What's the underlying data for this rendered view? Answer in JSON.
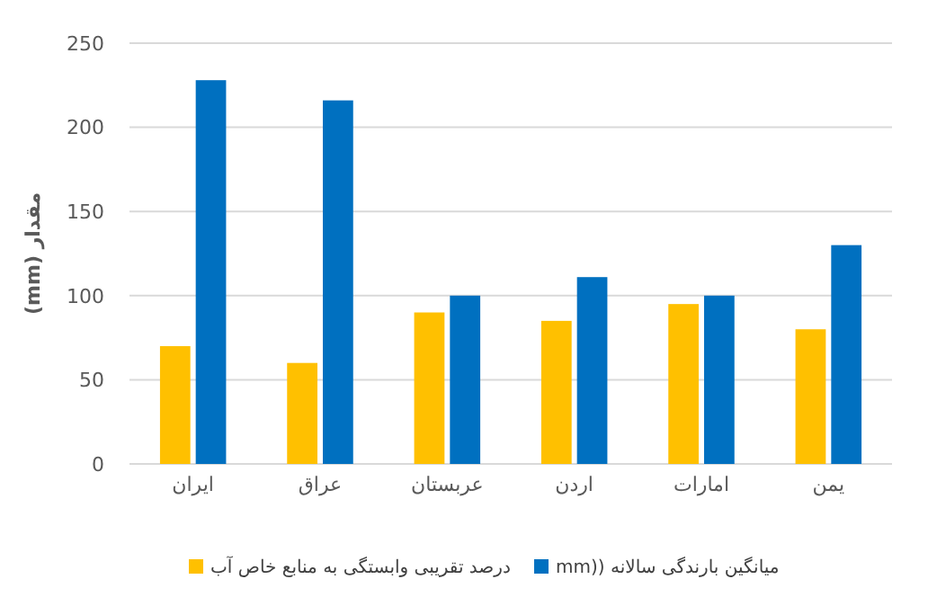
{
  "chart_data": {
    "type": "bar",
    "ylabel": "مقدار (mm)",
    "categories": [
      "ایران",
      "عراق",
      "عربستان",
      "اردن",
      "امارات",
      "یمن"
    ],
    "series": [
      {
        "name": "درصد تقریبی وابستگی به منابع خاص آب",
        "color": "#ffc000",
        "values": [
          70,
          60,
          90,
          85,
          95,
          80
        ]
      },
      {
        "name": "میانگین بارندگی سالانه ((mm",
        "color": "#0070c0",
        "values": [
          228,
          216,
          100,
          111,
          100,
          130
        ]
      }
    ],
    "ylim": [
      0,
      250
    ],
    "yticks": [
      0,
      50,
      100,
      150,
      200,
      250
    ],
    "grid": "y",
    "legend": "bottom"
  }
}
